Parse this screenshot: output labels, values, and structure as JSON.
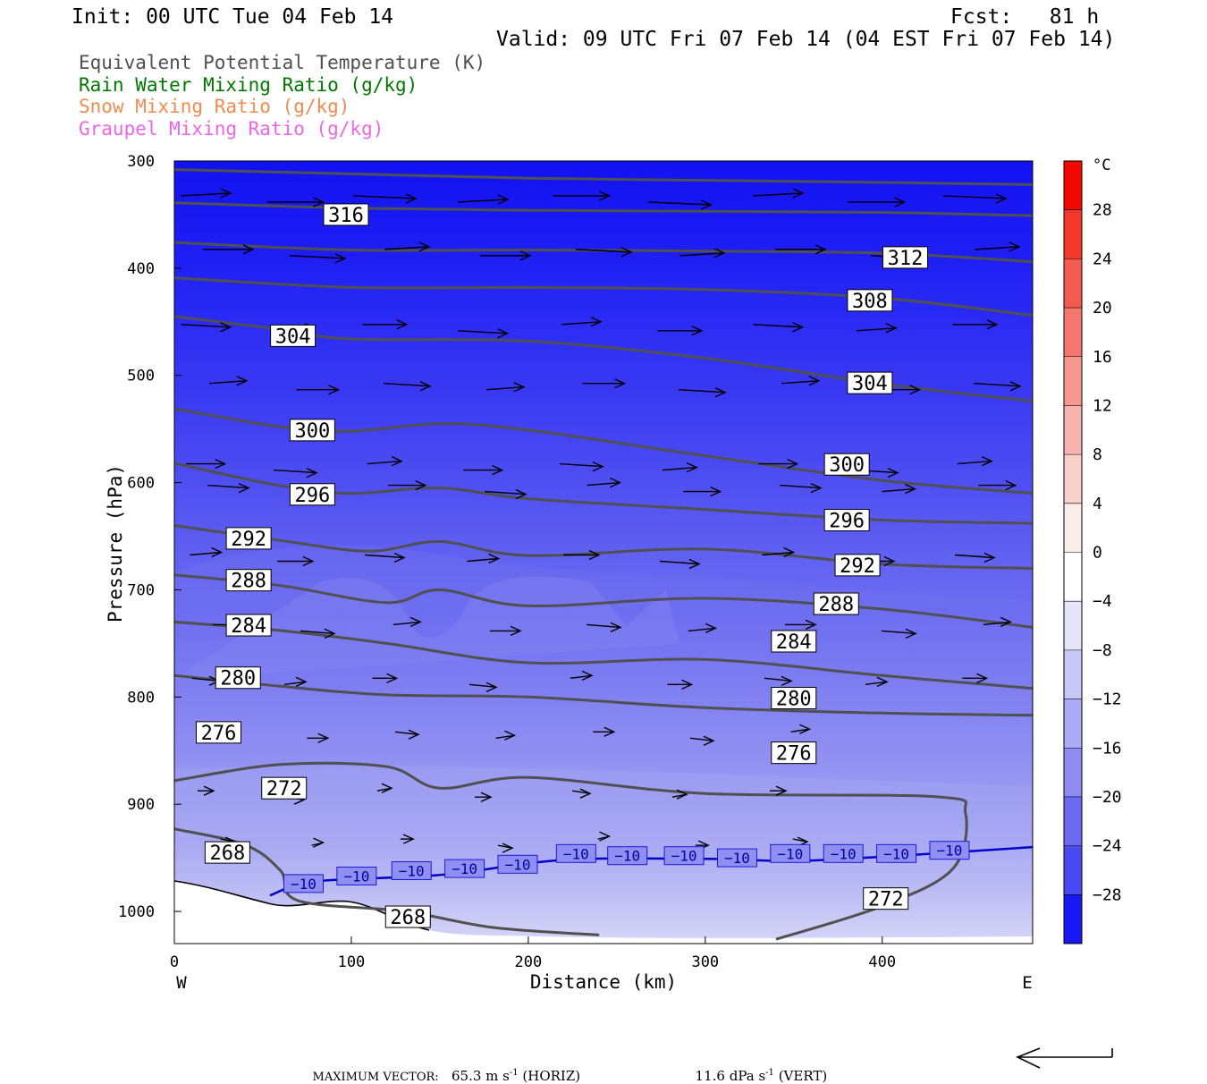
{
  "header": {
    "init": "Init: 00 UTC Tue 04 Feb 14",
    "fcst": "Fcst:   81 h",
    "valid": "Valid: 09 UTC Fri 07 Feb 14 (04 EST Fri 07 Feb 14)"
  },
  "legend": {
    "theta_e": "Equivalent Potential Temperature (K)",
    "rain": "Rain Water Mixing Ratio (g/kg)",
    "snow": "Snow Mixing Ratio (g/kg)",
    "graupel": "Graupel Mixing Ratio (g/kg)"
  },
  "colors": {
    "theta_e": "#505050",
    "rain": "#007800",
    "snow": "#f08c50",
    "graupel": "#f064e6",
    "isotherm": "#0000d0"
  },
  "footer": {
    "max_vector_label": "MAXIMUM VECTOR:",
    "horiz_value": "65.3",
    "horiz_units": "m s",
    "horiz_exp": "-1",
    "horiz_tag": "(HORIZ)",
    "vert_value": "11.6",
    "vert_units": "dPa s",
    "vert_exp": "-1",
    "vert_tag": "(VERT)"
  },
  "chart_data": {
    "type": "contour",
    "xlabel": "Distance (km)",
    "ylabel": "Pressure (hPa)",
    "xlim": [
      0,
      485
    ],
    "ylim": [
      1030,
      300
    ],
    "x_ticks": [
      0,
      100,
      200,
      300,
      400
    ],
    "y_ticks": [
      300,
      400,
      500,
      600,
      700,
      800,
      900,
      1000
    ],
    "left_end_label": "W",
    "right_end_label": "E",
    "colorbar": {
      "units": "°C",
      "ticks": [
        "28",
        "24",
        "20",
        "16",
        "12",
        "8",
        "4",
        "0",
        "−4",
        "−8",
        "−12",
        "−16",
        "−20",
        "−24",
        "−28"
      ]
    },
    "theta_e_contours": [
      {
        "label": "316",
        "points": [
          [
            0,
            308
          ],
          [
            100,
            312
          ],
          [
            200,
            316
          ],
          [
            300,
            318
          ],
          [
            400,
            320
          ],
          [
            485,
            322
          ]
        ],
        "labels_at": [
          [
            97,
            350
          ]
        ]
      },
      {
        "label": "312",
        "points": [
          [
            0,
            339
          ],
          [
            100,
            344
          ],
          [
            200,
            346
          ],
          [
            300,
            347
          ],
          [
            400,
            348
          ],
          [
            485,
            351
          ]
        ],
        "labels_at": [
          [
            413,
            390
          ]
        ]
      },
      {
        "label": "308",
        "points": [
          [
            0,
            376
          ],
          [
            100,
            383
          ],
          [
            200,
            383
          ],
          [
            300,
            384
          ],
          [
            400,
            386
          ],
          [
            485,
            394
          ]
        ],
        "labels_at": [
          [
            393,
            430
          ]
        ]
      },
      {
        "label": "304",
        "points": [
          [
            0,
            409
          ],
          [
            100,
            418
          ],
          [
            200,
            418
          ],
          [
            300,
            420
          ],
          [
            400,
            428
          ],
          [
            485,
            444
          ]
        ],
        "labels_at": [
          [
            67,
            463
          ],
          [
            393,
            507
          ]
        ]
      },
      {
        "label": "300",
        "points": [
          [
            0,
            445
          ],
          [
            60,
            457
          ],
          [
            100,
            466
          ],
          [
            200,
            468
          ],
          [
            300,
            484
          ],
          [
            400,
            508
          ],
          [
            485,
            524
          ]
        ],
        "labels_at": [
          [
            78,
            551
          ],
          [
            380,
            583
          ]
        ]
      },
      {
        "label": "296",
        "points": [
          [
            0,
            531
          ],
          [
            60,
            548
          ],
          [
            100,
            552
          ],
          [
            150,
            545
          ],
          [
            200,
            551
          ],
          [
            300,
            575
          ],
          [
            400,
            598
          ],
          [
            485,
            610
          ]
        ],
        "labels_at": [
          [
            78,
            611
          ],
          [
            380,
            635
          ]
        ]
      },
      {
        "label": "292",
        "points": [
          [
            0,
            582
          ],
          [
            60,
            603
          ],
          [
            100,
            610
          ],
          [
            150,
            605
          ],
          [
            200,
            615
          ],
          [
            300,
            625
          ],
          [
            400,
            635
          ],
          [
            485,
            638
          ]
        ],
        "labels_at": [
          [
            42,
            652
          ],
          [
            386,
            677
          ]
        ]
      },
      {
        "label": "288",
        "points": [
          [
            0,
            640
          ],
          [
            60,
            654
          ],
          [
            110,
            664
          ],
          [
            150,
            655
          ],
          [
            200,
            668
          ],
          [
            300,
            662
          ],
          [
            400,
            676
          ],
          [
            485,
            680
          ]
        ],
        "labels_at": [
          [
            42,
            691
          ],
          [
            374,
            713
          ]
        ]
      },
      {
        "label": "284",
        "points": [
          [
            0,
            686
          ],
          [
            60,
            696
          ],
          [
            120,
            712
          ],
          [
            150,
            700
          ],
          [
            200,
            715
          ],
          [
            300,
            708
          ],
          [
            400,
            718
          ],
          [
            485,
            735
          ]
        ],
        "labels_at": [
          [
            42,
            733
          ],
          [
            350,
            748
          ]
        ]
      },
      {
        "label": "280",
        "points": [
          [
            0,
            730
          ],
          [
            60,
            738
          ],
          [
            120,
            750
          ],
          [
            200,
            768
          ],
          [
            300,
            765
          ],
          [
            400,
            780
          ],
          [
            485,
            792
          ]
        ],
        "labels_at": [
          [
            36,
            782
          ],
          [
            350,
            801
          ]
        ]
      },
      {
        "label": "276",
        "points": [
          [
            0,
            780
          ],
          [
            60,
            790
          ],
          [
            120,
            798
          ],
          [
            200,
            800
          ],
          [
            300,
            810
          ],
          [
            400,
            815
          ],
          [
            485,
            817
          ]
        ],
        "labels_at": [
          [
            25,
            833
          ],
          [
            350,
            852
          ]
        ]
      },
      {
        "label": "272",
        "points": [
          [
            0,
            878
          ],
          [
            60,
            863
          ],
          [
            120,
            865
          ],
          [
            150,
            885
          ],
          [
            200,
            875
          ],
          [
            300,
            890
          ],
          [
            430,
            893
          ],
          [
            447,
            908
          ],
          [
            440,
            960
          ],
          [
            400,
            995
          ],
          [
            340,
            1026
          ]
        ],
        "labels_at": [
          [
            62,
            885
          ],
          [
            402,
            988
          ]
        ]
      },
      {
        "label": "268",
        "points": [
          [
            0,
            923
          ],
          [
            40,
            938
          ],
          [
            60,
            962
          ],
          [
            70,
            990
          ],
          [
            130,
            1000
          ],
          [
            180,
            1015
          ],
          [
            240,
            1022
          ]
        ],
        "labels_at": [
          [
            30,
            945
          ],
          [
            132,
            1005
          ]
        ]
      }
    ],
    "isotherm": {
      "label": "−10",
      "points": [
        [
          54,
          985
        ],
        [
          80,
          972
        ],
        [
          150,
          966
        ],
        [
          220,
          952
        ],
        [
          300,
          951
        ],
        [
          350,
          953
        ],
        [
          400,
          949
        ],
        [
          485,
          940
        ]
      ],
      "labels_at": [
        [
          73,
          974
        ],
        [
          103,
          967
        ],
        [
          134,
          962
        ],
        [
          164,
          960
        ],
        [
          194,
          956
        ],
        [
          227,
          946
        ],
        [
          256,
          948
        ],
        [
          288,
          948
        ],
        [
          318,
          950
        ],
        [
          348,
          946
        ],
        [
          378,
          946
        ],
        [
          408,
          946
        ],
        [
          438,
          943
        ]
      ]
    }
  }
}
